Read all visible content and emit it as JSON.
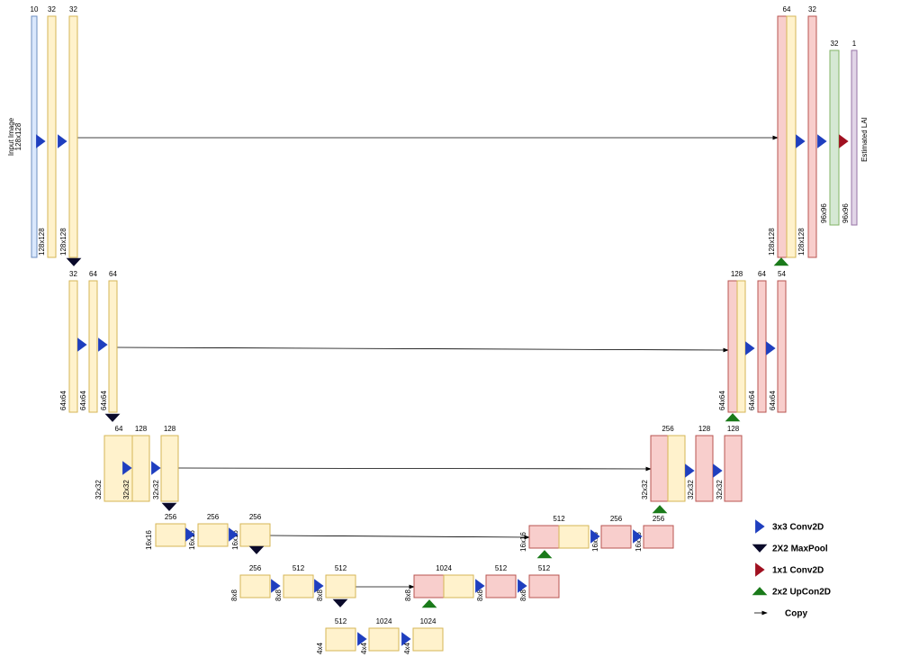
{
  "blocks": [
    {
      "channels": "10"
    },
    {
      "channels": "32",
      "size": "128x128"
    },
    {
      "channels": "32",
      "size": "128x128"
    },
    {
      "channels": "64",
      "size": "128x128"
    },
    {
      "channels": "32",
      "size": "128x128"
    },
    {
      "channels": "32",
      "size": "96x96"
    },
    {
      "channels": "1",
      "size": "96x96"
    },
    {
      "channels": "32",
      "size": "64x64"
    },
    {
      "channels": "64",
      "size": "64x64"
    },
    {
      "channels": "64",
      "size": "64x64"
    },
    {
      "channels": "128",
      "size": "64x64"
    },
    {
      "channels": "64",
      "size": "64x64"
    },
    {
      "channels": "54",
      "size": "64x64"
    },
    {
      "channels": "64",
      "size": "32x32"
    },
    {
      "channels": "128",
      "size": "32x32"
    },
    {
      "channels": "128",
      "size": "32x32"
    },
    {
      "channels": "256",
      "size": "32x32"
    },
    {
      "channels": "128",
      "size": "32x32"
    },
    {
      "channels": "128",
      "size": "32x32"
    },
    {
      "channels": "256",
      "size": "16x16"
    },
    {
      "channels": "256",
      "size": "16x16"
    },
    {
      "channels": "256",
      "size": "16x16"
    },
    {
      "channels": "512",
      "size": "16x16"
    },
    {
      "channels": "256",
      "size": "16x16"
    },
    {
      "channels": "256",
      "size": "16x16"
    },
    {
      "channels": "256",
      "size": "8x8"
    },
    {
      "channels": "512",
      "size": "8x8"
    },
    {
      "channels": "512",
      "size": "8x8"
    },
    {
      "channels": "1024",
      "size": "8x8"
    },
    {
      "channels": "512",
      "size": "8x8"
    },
    {
      "channels": "512",
      "size": "8x8"
    },
    {
      "channels": "512",
      "size": "4x4"
    },
    {
      "channels": "1024",
      "size": "4x4"
    },
    {
      "channels": "1024",
      "size": "4x4"
    }
  ],
  "input_label": [
    "Input Image",
    "128x128"
  ],
  "output_label": "Estimated LAI",
  "legend": [
    "3x3 Conv2D",
    "2X2 MaxPool",
    "1x1 Conv2D",
    "2x2 UpCon2D",
    "Copy"
  ]
}
